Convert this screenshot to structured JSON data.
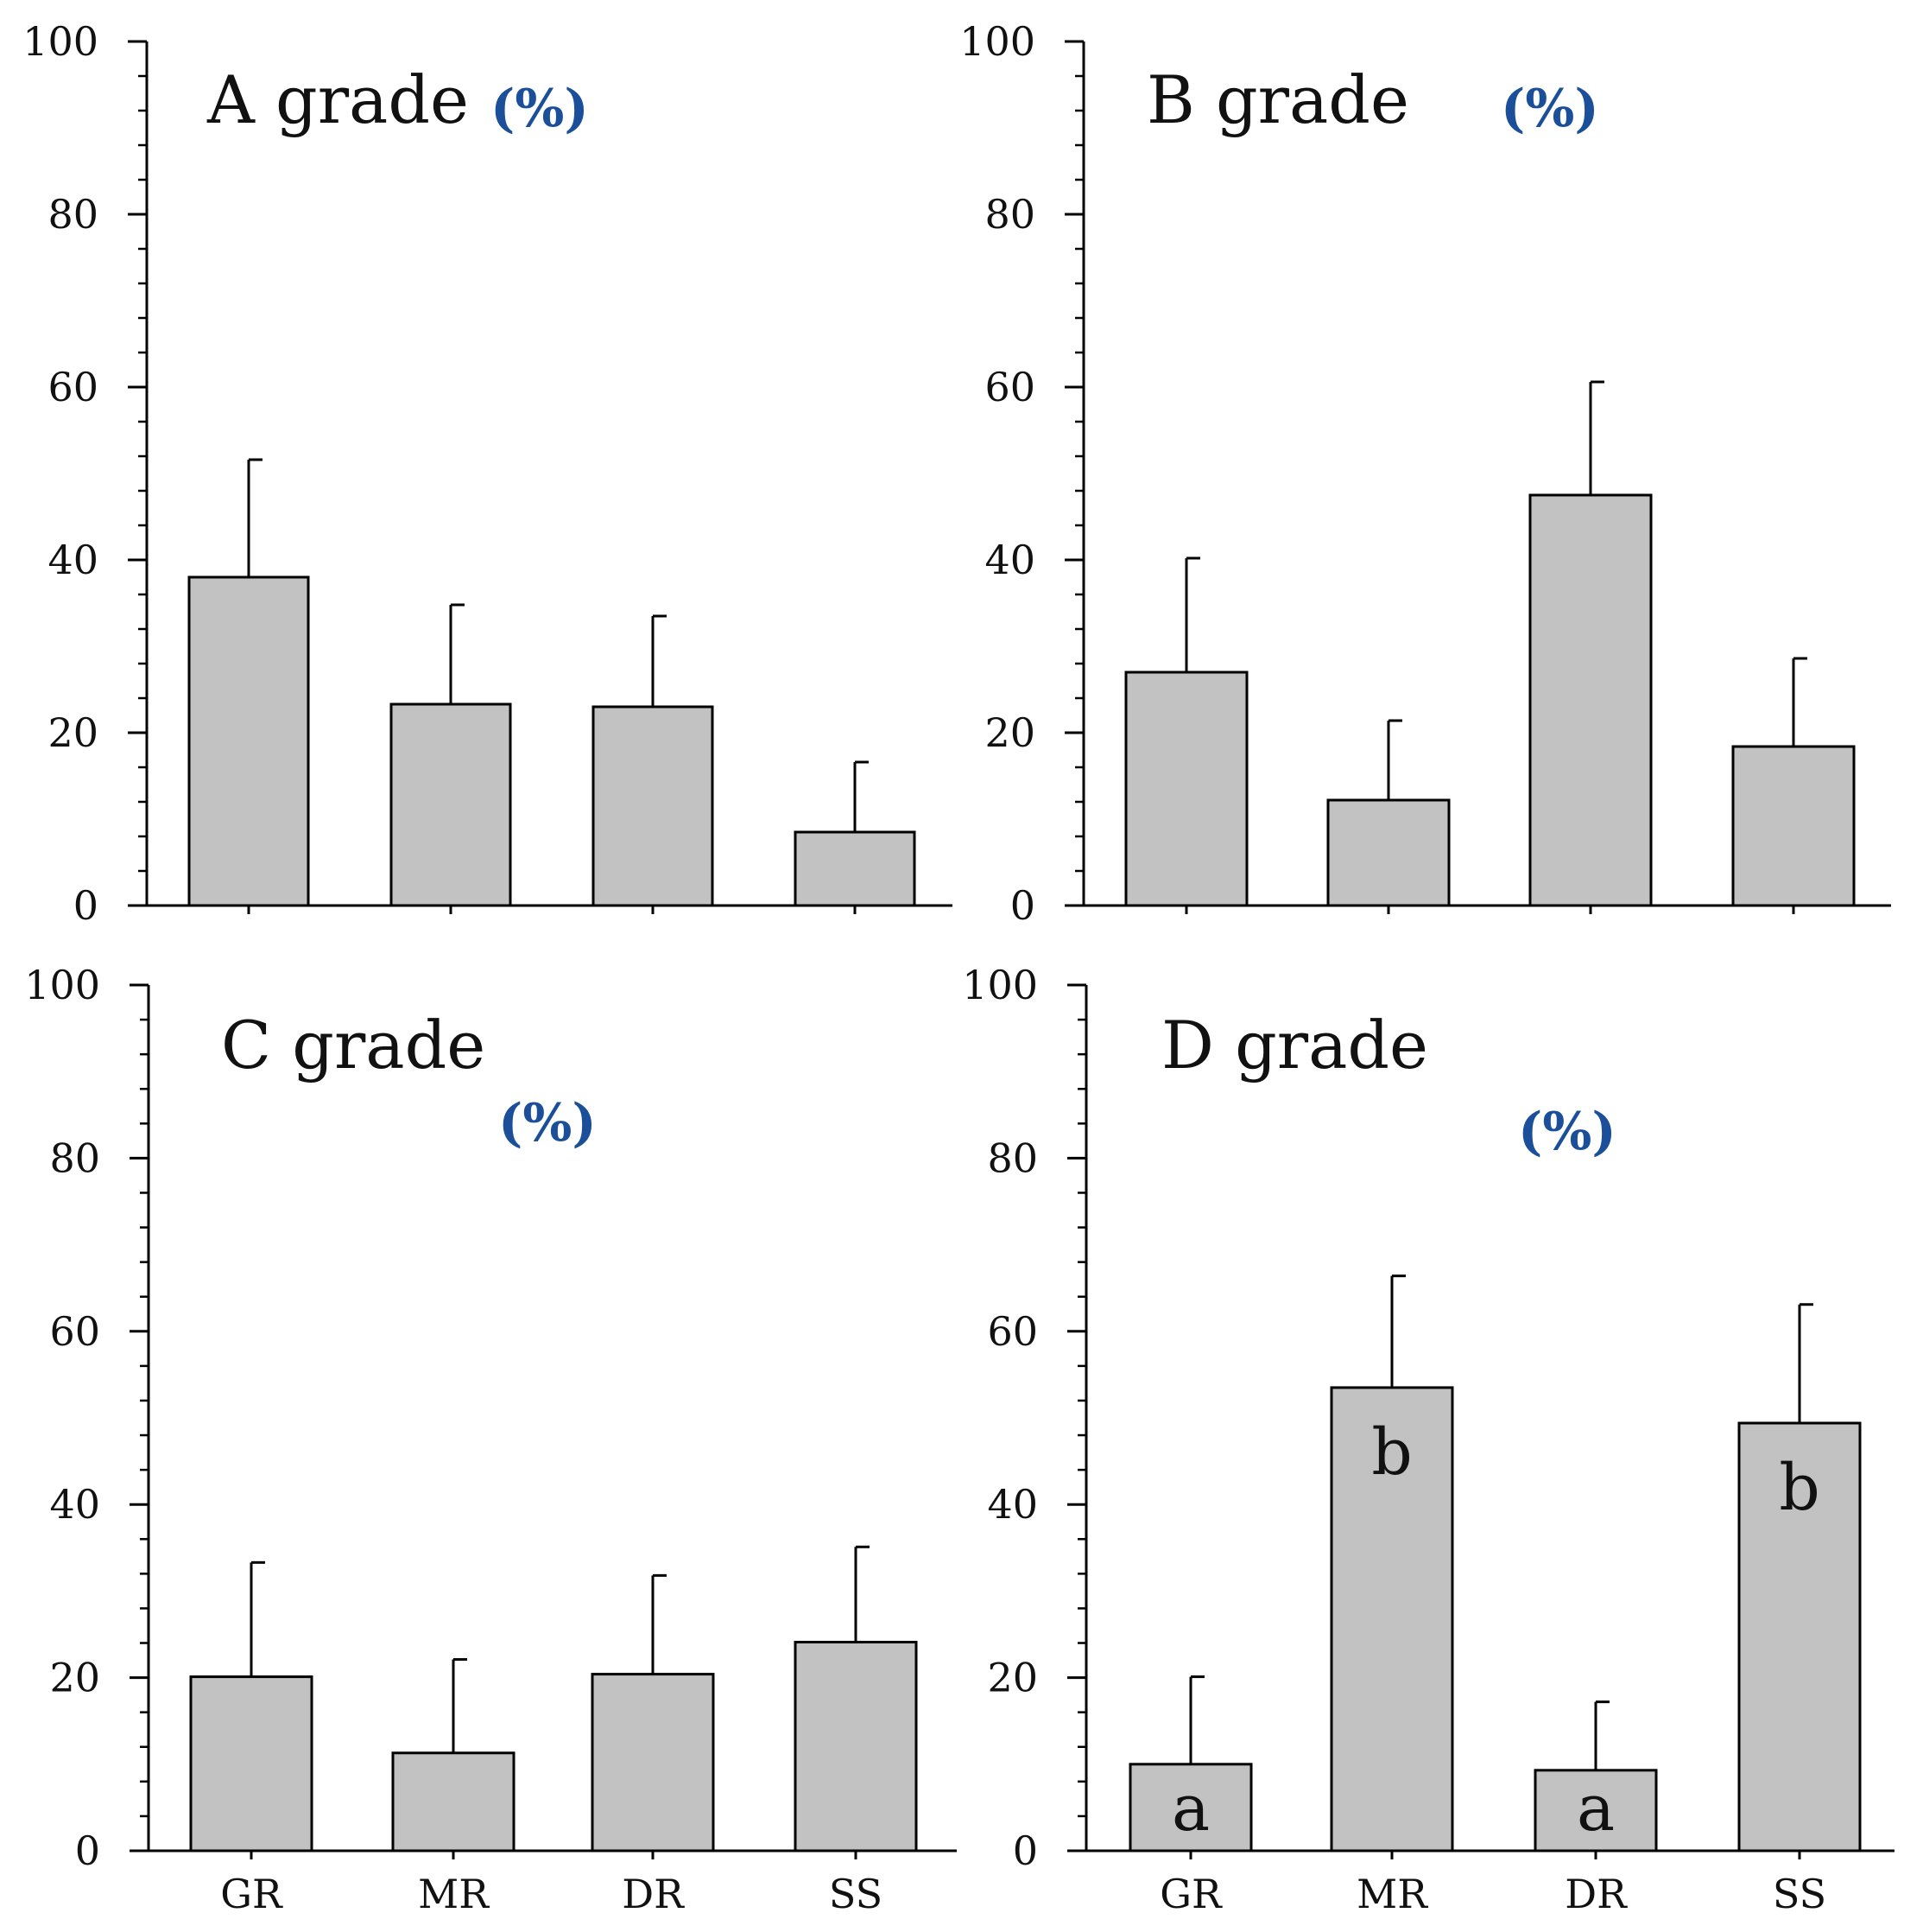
{
  "chart_data": [
    {
      "type": "bar",
      "title": "A grade",
      "unit_label": "(%)",
      "categories": [
        "GR",
        "MR",
        "DR",
        "SS"
      ],
      "values": [
        38,
        23.3,
        23,
        8.5
      ],
      "error_upper": [
        51.6,
        34.8,
        33.5,
        16.6
      ],
      "sig_letters": [
        "",
        "",
        "",
        ""
      ],
      "show_category_labels": false,
      "ylim": [
        0,
        100
      ],
      "yticks": [
        "0",
        "20",
        "40",
        "60",
        "80",
        "100"
      ],
      "xlabel": "",
      "ylabel": ""
    },
    {
      "type": "bar",
      "title": "B grade",
      "unit_label": "(%)",
      "categories": [
        "GR",
        "MR",
        "DR",
        "SS"
      ],
      "values": [
        27,
        12.2,
        47.5,
        18.4
      ],
      "error_upper": [
        40.2,
        21.4,
        60.6,
        28.6
      ],
      "sig_letters": [
        "",
        "",
        "",
        ""
      ],
      "show_category_labels": false,
      "ylim": [
        0,
        100
      ],
      "yticks": [
        "0",
        "20",
        "40",
        "60",
        "80",
        "100"
      ],
      "xlabel": "",
      "ylabel": ""
    },
    {
      "type": "bar",
      "title": "C grade",
      "unit_label": "(%)",
      "categories": [
        "GR",
        "MR",
        "DR",
        "SS"
      ],
      "values": [
        20.1,
        11.3,
        20.4,
        24.1
      ],
      "error_upper": [
        33.3,
        22.1,
        31.8,
        35.1
      ],
      "sig_letters": [
        "",
        "",
        "",
        ""
      ],
      "show_category_labels": true,
      "ylim": [
        0,
        100
      ],
      "yticks": [
        "0",
        "20",
        "40",
        "60",
        "80",
        "100"
      ],
      "xlabel": "",
      "ylabel": ""
    },
    {
      "type": "bar",
      "title": "D grade",
      "unit_label": "(%)",
      "categories": [
        "GR",
        "MR",
        "DR",
        "SS"
      ],
      "values": [
        10,
        53.5,
        9.3,
        49.4
      ],
      "error_upper": [
        20.1,
        66.4,
        17.2,
        63.1
      ],
      "sig_letters": [
        "a",
        "b",
        "a",
        "b"
      ],
      "show_category_labels": true,
      "ylim": [
        0,
        100
      ],
      "yticks": [
        "0",
        "20",
        "40",
        "60",
        "80",
        "100"
      ],
      "xlabel": "",
      "ylabel": ""
    }
  ]
}
